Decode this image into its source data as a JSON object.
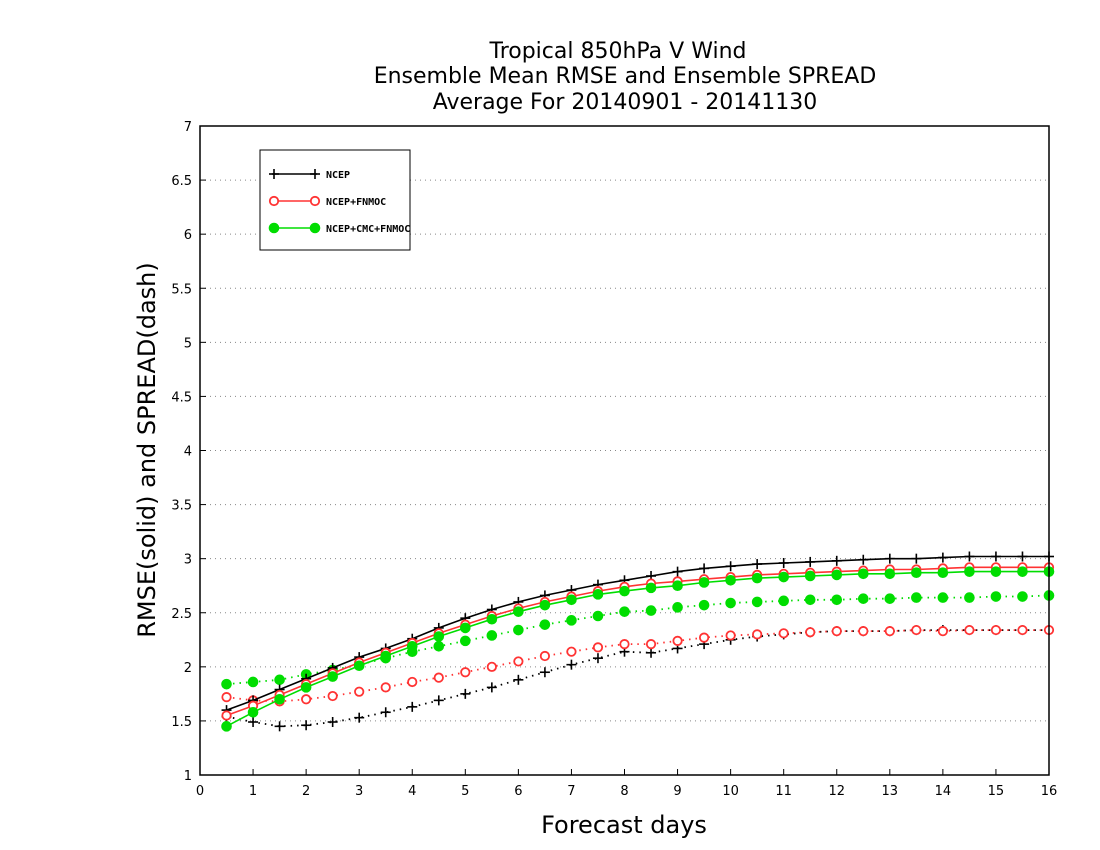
{
  "chart_data": {
    "type": "line",
    "title_lines": [
      "Tropical 850hPa V Wind",
      "Ensemble Mean RMSE and Ensemble SPREAD",
      "Average For 20140901 - 20141130"
    ],
    "xlabel": "Forecast days",
    "ylabel": "RMSE(solid) and SPREAD(dash)",
    "xlim": [
      0,
      16
    ],
    "ylim": [
      1,
      7
    ],
    "xticks": [
      0,
      1,
      2,
      3,
      4,
      5,
      6,
      7,
      8,
      9,
      10,
      11,
      12,
      13,
      14,
      15,
      16
    ],
    "yticks": [
      1,
      1.5,
      2,
      2.5,
      3,
      3.5,
      4,
      4.5,
      5,
      5.5,
      6,
      6.5,
      7
    ],
    "grid": "horizontal dotted",
    "legend_position": "top-left",
    "x": [
      0.5,
      1,
      1.5,
      2,
      2.5,
      3,
      3.5,
      4,
      4.5,
      5,
      5.5,
      6,
      6.5,
      7,
      7.5,
      8,
      8.5,
      9,
      9.5,
      10,
      10.5,
      11,
      11.5,
      12,
      12.5,
      13,
      13.5,
      14,
      14.5,
      15,
      15.5,
      16
    ],
    "series": [
      {
        "name": "NCEP",
        "color": "#000000",
        "marker": "plus",
        "rmse": [
          1.6,
          1.69,
          1.79,
          1.89,
          1.99,
          2.09,
          2.17,
          2.26,
          2.36,
          2.45,
          2.53,
          2.6,
          2.66,
          2.71,
          2.76,
          2.8,
          2.84,
          2.88,
          2.91,
          2.93,
          2.95,
          2.96,
          2.97,
          2.98,
          2.99,
          3.0,
          3.0,
          3.01,
          3.02,
          3.02,
          3.02,
          3.02
        ],
        "spread": [
          1.54,
          1.49,
          1.45,
          1.46,
          1.49,
          1.53,
          1.58,
          1.63,
          1.69,
          1.75,
          1.81,
          1.88,
          1.95,
          2.02,
          2.08,
          2.14,
          2.13,
          2.17,
          2.21,
          2.25,
          2.28,
          2.3,
          2.32,
          2.33,
          2.33,
          2.33,
          2.34,
          2.34,
          2.34,
          2.34,
          2.34,
          2.34
        ]
      },
      {
        "name": "NCEP+FNMOC",
        "color": "#ff3333",
        "marker": "open-circle",
        "rmse": [
          1.55,
          1.64,
          1.74,
          1.84,
          1.94,
          2.04,
          2.13,
          2.22,
          2.31,
          2.39,
          2.47,
          2.54,
          2.6,
          2.65,
          2.7,
          2.74,
          2.77,
          2.79,
          2.81,
          2.83,
          2.85,
          2.86,
          2.87,
          2.88,
          2.89,
          2.9,
          2.9,
          2.91,
          2.92,
          2.92,
          2.92,
          2.92
        ],
        "spread": [
          1.72,
          1.69,
          1.68,
          1.7,
          1.73,
          1.77,
          1.81,
          1.86,
          1.9,
          1.95,
          2.0,
          2.05,
          2.1,
          2.14,
          2.18,
          2.21,
          2.21,
          2.24,
          2.27,
          2.29,
          2.3,
          2.31,
          2.32,
          2.33,
          2.33,
          2.33,
          2.34,
          2.33,
          2.34,
          2.34,
          2.34,
          2.34
        ]
      },
      {
        "name": "NCEP+CMC+FNMOC",
        "color": "#00dd00",
        "marker": "filled-circle",
        "rmse": [
          1.45,
          1.58,
          1.7,
          1.81,
          1.91,
          2.01,
          2.1,
          2.19,
          2.28,
          2.36,
          2.44,
          2.51,
          2.57,
          2.62,
          2.67,
          2.7,
          2.73,
          2.75,
          2.78,
          2.8,
          2.82,
          2.83,
          2.84,
          2.85,
          2.86,
          2.86,
          2.87,
          2.87,
          2.88,
          2.88,
          2.88,
          2.88
        ],
        "spread": [
          1.84,
          1.86,
          1.88,
          1.93,
          1.97,
          2.02,
          2.08,
          2.14,
          2.19,
          2.24,
          2.29,
          2.34,
          2.39,
          2.43,
          2.47,
          2.51,
          2.52,
          2.55,
          2.57,
          2.59,
          2.6,
          2.61,
          2.62,
          2.62,
          2.63,
          2.63,
          2.64,
          2.64,
          2.64,
          2.65,
          2.65,
          2.66
        ]
      }
    ]
  }
}
